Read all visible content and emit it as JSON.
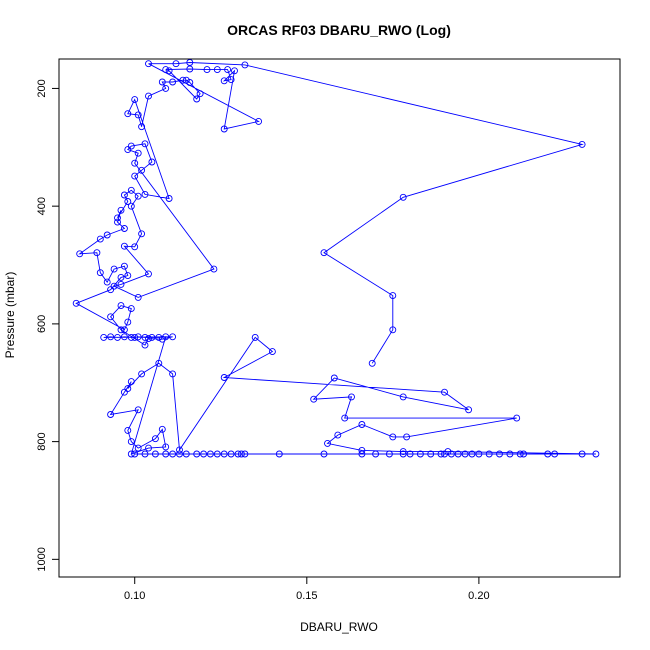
{
  "chart_data": {
    "type": "scatter",
    "title": "ORCAS RF03 DBARU_RWO (Log)",
    "xlabel": "DBARU_RWO",
    "ylabel": "Pressure (mbar)",
    "xlim": [
      0.078,
      0.241
    ],
    "ylim": [
      1030,
      150
    ],
    "y_reversed": true,
    "x_ticks": [
      0.1,
      0.15,
      0.2
    ],
    "x_tick_labels": [
      "0.10",
      "0.15",
      "0.20"
    ],
    "y_ticks": [
      200,
      400,
      600,
      800,
      1000
    ],
    "y_tick_labels": [
      "200",
      "400",
      "600",
      "800",
      "1000"
    ],
    "series": [
      {
        "color": "#0000ff",
        "marker": "open-circle",
        "line": true,
        "points": [
          [
            0.1,
            821
          ],
          [
            0.103,
            821
          ],
          [
            0.106,
            821
          ],
          [
            0.109,
            821
          ],
          [
            0.111,
            821
          ],
          [
            0.113,
            821
          ],
          [
            0.115,
            821
          ],
          [
            0.118,
            821
          ],
          [
            0.12,
            821
          ],
          [
            0.122,
            821
          ],
          [
            0.124,
            821
          ],
          [
            0.126,
            821
          ],
          [
            0.128,
            821
          ],
          [
            0.13,
            821
          ],
          [
            0.131,
            821
          ],
          [
            0.132,
            821
          ],
          [
            0.142,
            821
          ],
          [
            0.155,
            821
          ],
          [
            0.166,
            821
          ],
          [
            0.17,
            821
          ],
          [
            0.174,
            821
          ],
          [
            0.178,
            821
          ],
          [
            0.18,
            821
          ],
          [
            0.183,
            821
          ],
          [
            0.186,
            821
          ],
          [
            0.189,
            821
          ],
          [
            0.19,
            821
          ],
          [
            0.192,
            821
          ],
          [
            0.194,
            821
          ],
          [
            0.196,
            821
          ],
          [
            0.198,
            821
          ],
          [
            0.2,
            821
          ],
          [
            0.203,
            821
          ],
          [
            0.206,
            821
          ],
          [
            0.209,
            821
          ],
          [
            0.212,
            821
          ],
          [
            0.213,
            821
          ],
          [
            0.22,
            821
          ],
          [
            0.222,
            821
          ],
          [
            0.23,
            821
          ],
          [
            0.234,
            821
          ],
          [
            0.191,
            817
          ],
          [
            0.178,
            817
          ],
          [
            0.166,
            815
          ],
          [
            0.156,
            803
          ],
          [
            0.159,
            789
          ],
          [
            0.166,
            771
          ],
          [
            0.175,
            792
          ],
          [
            0.179,
            792
          ],
          [
            0.211,
            760
          ],
          [
            0.161,
            760
          ],
          [
            0.163,
            724
          ],
          [
            0.152,
            728
          ],
          [
            0.158,
            692
          ],
          [
            0.178,
            724
          ],
          [
            0.197,
            746
          ],
          [
            0.19,
            716
          ],
          [
            0.126,
            691
          ],
          [
            0.14,
            647
          ],
          [
            0.135,
            623
          ],
          [
            0.113,
            814
          ],
          [
            0.111,
            685
          ],
          [
            0.107,
            667
          ],
          [
            0.102,
            685
          ],
          [
            0.098,
            710
          ],
          [
            0.099,
            698
          ],
          [
            0.097,
            716
          ],
          [
            0.093,
            754
          ],
          [
            0.101,
            746
          ],
          [
            0.098,
            781
          ],
          [
            0.099,
            800
          ],
          [
            0.101,
            811
          ],
          [
            0.106,
            795
          ],
          [
            0.108,
            779
          ],
          [
            0.109,
            809
          ],
          [
            0.104,
            811
          ],
          [
            0.099,
            821
          ],
          [
            0.109,
            622
          ],
          [
            0.107,
            623
          ],
          [
            0.105,
            623
          ],
          [
            0.103,
            623
          ],
          [
            0.101,
            622
          ],
          [
            0.1,
            623
          ],
          [
            0.099,
            623
          ],
          [
            0.097,
            622
          ],
          [
            0.095,
            623
          ],
          [
            0.093,
            622
          ],
          [
            0.091,
            623
          ],
          [
            0.111,
            622
          ],
          [
            0.108,
            626
          ],
          [
            0.104,
            625
          ],
          [
            0.103,
            636
          ],
          [
            0.096,
            610
          ],
          [
            0.093,
            588
          ],
          [
            0.096,
            569
          ],
          [
            0.099,
            574
          ],
          [
            0.098,
            597
          ],
          [
            0.097,
            610
          ],
          [
            0.083,
            565
          ],
          [
            0.093,
            542
          ],
          [
            0.096,
            521
          ],
          [
            0.098,
            518
          ],
          [
            0.097,
            502
          ],
          [
            0.094,
            507
          ],
          [
            0.092,
            529
          ],
          [
            0.09,
            513
          ],
          [
            0.089,
            479
          ],
          [
            0.084,
            481
          ],
          [
            0.09,
            456
          ],
          [
            0.092,
            449
          ],
          [
            0.097,
            438
          ],
          [
            0.095,
            427
          ],
          [
            0.096,
            407
          ],
          [
            0.095,
            420
          ],
          [
            0.098,
            392
          ],
          [
            0.097,
            381
          ],
          [
            0.099,
            373
          ],
          [
            0.101,
            383
          ],
          [
            0.099,
            400
          ],
          [
            0.102,
            447
          ],
          [
            0.1,
            469
          ],
          [
            0.097,
            468
          ],
          [
            0.104,
            515
          ],
          [
            0.096,
            533
          ],
          [
            0.094,
            536
          ],
          [
            0.101,
            555
          ],
          [
            0.123,
            507
          ],
          [
            0.1,
            327
          ],
          [
            0.101,
            310
          ],
          [
            0.098,
            304
          ],
          [
            0.099,
            298
          ],
          [
            0.103,
            294
          ],
          [
            0.105,
            325
          ],
          [
            0.102,
            339
          ],
          [
            0.1,
            349
          ],
          [
            0.103,
            380
          ],
          [
            0.11,
            387
          ],
          [
            0.1,
            219
          ],
          [
            0.098,
            243
          ],
          [
            0.101,
            245
          ],
          [
            0.102,
            265
          ],
          [
            0.104,
            213
          ],
          [
            0.109,
            200
          ],
          [
            0.108,
            189
          ],
          [
            0.111,
            189
          ],
          [
            0.114,
            186
          ],
          [
            0.115,
            186
          ],
          [
            0.116,
            190
          ],
          [
            0.119,
            209
          ],
          [
            0.118,
            218
          ],
          [
            0.11,
            170
          ],
          [
            0.109,
            168
          ],
          [
            0.116,
            167
          ],
          [
            0.121,
            168
          ],
          [
            0.124,
            168
          ],
          [
            0.127,
            168
          ],
          [
            0.128,
            185
          ],
          [
            0.126,
            187
          ],
          [
            0.129,
            170
          ],
          [
            0.126,
            269
          ],
          [
            0.136,
            256
          ],
          [
            0.104,
            158
          ],
          [
            0.112,
            158
          ],
          [
            0.116,
            156
          ],
          [
            0.132,
            160
          ],
          [
            0.23,
            295
          ],
          [
            0.178,
            385
          ],
          [
            0.155,
            479
          ],
          [
            0.175,
            552
          ],
          [
            0.175,
            610
          ],
          [
            0.169,
            667
          ]
        ]
      }
    ]
  }
}
